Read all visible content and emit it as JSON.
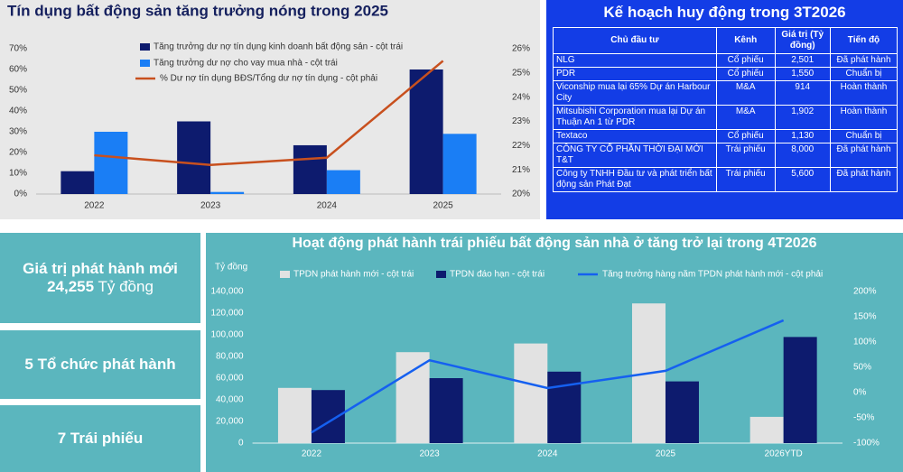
{
  "chart_data": [
    {
      "type": "bar",
      "title": "Tín dụng bất động sản tăng trưởng nóng trong 2025",
      "categories": [
        "2022",
        "2023",
        "2024",
        "2025"
      ],
      "series": [
        {
          "name": "Tăng trưởng dư nợ tín dụng kinh doanh bất động sản - cột trái",
          "color": "#0d1b6e",
          "values": [
            11,
            35,
            23.5,
            60
          ]
        },
        {
          "name": "Tăng trưởng dư nợ cho vay mua nhà - cột trái",
          "color": "#1a7ef5",
          "values": [
            30,
            1,
            11.5,
            29
          ]
        },
        {
          "name": "% Dư nợ tín dụng BĐS/Tổng dư nợ tín dụng - cột phải",
          "color": "#c8501e",
          "type": "line",
          "axis": "y2",
          "values": [
            21.6,
            21.2,
            21.5,
            25.5
          ]
        }
      ],
      "ylim": [
        0,
        70
      ],
      "yticks": [
        {
          "value": 0,
          "label": "0%"
        },
        {
          "value": 10,
          "label": "10%"
        },
        {
          "value": 20,
          "label": "20%"
        },
        {
          "value": 30,
          "label": "30%"
        },
        {
          "value": 40,
          "label": "40%"
        },
        {
          "value": 50,
          "label": "50%"
        },
        {
          "value": 60,
          "label": "60%"
        },
        {
          "value": 70,
          "label": "70%"
        }
      ],
      "y2lim": [
        20,
        26
      ],
      "y2ticks": [
        {
          "value": 20,
          "label": "20%"
        },
        {
          "value": 21,
          "label": "21%"
        },
        {
          "value": 22,
          "label": "22%"
        },
        {
          "value": 23,
          "label": "23%"
        },
        {
          "value": 24,
          "label": "24%"
        },
        {
          "value": 25,
          "label": "25%"
        },
        {
          "value": 26,
          "label": "26%"
        }
      ],
      "grid": false
    },
    {
      "type": "bar",
      "title": "Hoạt động phát hành trái phiếu bất động sản nhà ở tăng trở lại trong 4T2026",
      "ylabel": "Tỷ đồng",
      "categories": [
        "2022",
        "2023",
        "2024",
        "2025",
        "2026YTD"
      ],
      "series": [
        {
          "name": "TPDN phát hành mới - cột trái",
          "color": "#e2e2e2",
          "values": [
            51000,
            84000,
            92000,
            129000,
            24255
          ]
        },
        {
          "name": "TPDN đáo hạn - cột trái",
          "color": "#0d1b6e",
          "values": [
            49000,
            60000,
            66000,
            57000,
            98000
          ]
        },
        {
          "name": "Tăng trưởng hàng năm TPDN phát hành mới - cột phải",
          "color": "#1560f0",
          "type": "line",
          "axis": "y2",
          "values": [
            -79,
            64,
            9,
            43,
            143
          ]
        }
      ],
      "ylim": [
        0,
        140000
      ],
      "yticks": [
        0,
        {
          "value": 20000,
          "label": "20,000"
        },
        {
          "value": 40000,
          "label": "40,000"
        },
        {
          "value": 60000,
          "label": "60,000"
        },
        {
          "value": 80000,
          "label": "80,000"
        },
        {
          "value": 100000,
          "label": "100,000"
        },
        {
          "value": 120000,
          "label": "120,000"
        },
        {
          "value": 140000,
          "label": "140,000"
        }
      ],
      "y2lim": [
        -100,
        200
      ],
      "y2ticks": [
        {
          "value": -100,
          "label": "-100%"
        },
        {
          "value": -50,
          "label": "-50%"
        },
        {
          "value": 0,
          "label": "0%"
        },
        {
          "value": 50,
          "label": "50%"
        },
        {
          "value": 100,
          "label": "100%"
        },
        {
          "value": 150,
          "label": "150%"
        },
        {
          "value": 200,
          "label": "200%"
        }
      ],
      "grid": false
    }
  ],
  "table": {
    "title": "Kế hoạch huy động trong 3T2026",
    "header": [
      "Chủ đầu tư",
      "Kênh",
      "Giá trị (Tỷ đồng)",
      "Tiến độ"
    ],
    "rows": [
      [
        "NLG",
        "Cổ phiếu",
        "2,501",
        "Đã phát hành"
      ],
      [
        "PDR",
        "Cổ phiếu",
        "1,550",
        "Chuẩn bị"
      ],
      [
        "Viconship mua lại 65% Dự án Harbour City",
        "M&A",
        "914",
        "Hoàn thành"
      ],
      [
        "Mitsubishi Corporation mua lại Dự án Thuận An 1 từ PDR",
        "M&A",
        "1,902",
        "Hoàn thành"
      ],
      [
        "Textaco",
        "Cổ phiếu",
        "1,130",
        "Chuẩn bị"
      ],
      [
        "CÔNG TY CỔ PHẦN THỜI ĐẠI MỚI T&T",
        "Trái phiếu",
        "8,000",
        "Đã phát hành"
      ],
      [
        "Công ty TNHH Đầu tư và phát triển bất động sản Phát Đạt",
        "Trái phiếu",
        "5,600",
        "Đã phát hành"
      ]
    ]
  },
  "kpis": {
    "issued_label": "Giá trị phát hành mới",
    "issued_value": "24,255",
    "issued_unit": "Tỷ đồng",
    "issuers": "5 Tổ chức phát hành",
    "bonds": "7 Trái phiếu"
  }
}
